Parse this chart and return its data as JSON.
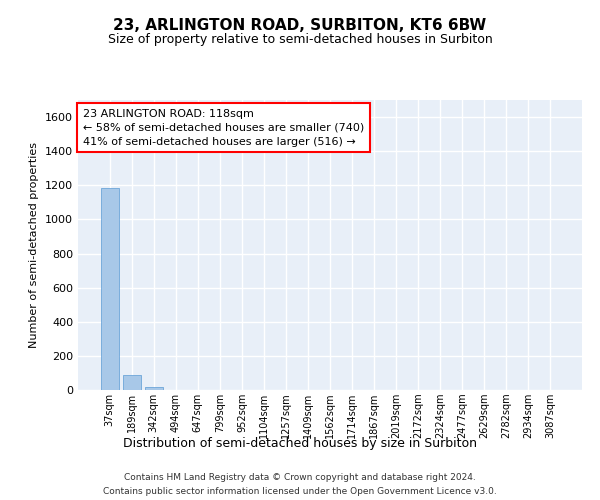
{
  "title": "23, ARLINGTON ROAD, SURBITON, KT6 6BW",
  "subtitle": "Size of property relative to semi-detached houses in Surbiton",
  "xlabel": "Distribution of semi-detached houses by size in Surbiton",
  "ylabel": "Number of semi-detached properties",
  "bin_labels": [
    "37sqm",
    "189sqm",
    "342sqm",
    "494sqm",
    "647sqm",
    "799sqm",
    "952sqm",
    "1104sqm",
    "1257sqm",
    "1409sqm",
    "1562sqm",
    "1714sqm",
    "1867sqm",
    "2019sqm",
    "2172sqm",
    "2324sqm",
    "2477sqm",
    "2629sqm",
    "2782sqm",
    "2934sqm",
    "3087sqm"
  ],
  "bar_values": [
    1185,
    86,
    17,
    0,
    0,
    0,
    0,
    0,
    0,
    0,
    0,
    0,
    0,
    0,
    0,
    0,
    0,
    0,
    0,
    0,
    0
  ],
  "bar_color": "#a8c8e8",
  "bar_edge_color": "#5b9bd5",
  "annotation_text": "23 ARLINGTON ROAD: 118sqm\n← 58% of semi-detached houses are smaller (740)\n41% of semi-detached houses are larger (516) →",
  "ylim": [
    0,
    1700
  ],
  "yticks": [
    0,
    200,
    400,
    600,
    800,
    1000,
    1200,
    1400,
    1600
  ],
  "bg_color": "#e8eff8",
  "grid_color": "#ffffff",
  "footer_line1": "Contains HM Land Registry data © Crown copyright and database right 2024.",
  "footer_line2": "Contains public sector information licensed under the Open Government Licence v3.0."
}
